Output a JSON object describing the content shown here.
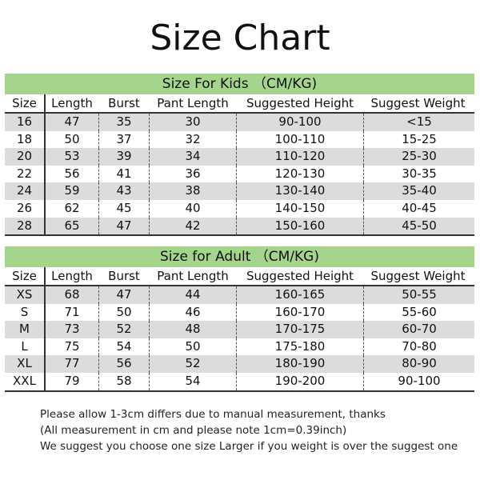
{
  "title": "Size Chart",
  "colors": {
    "band": "#a5d58c",
    "stripe": "#dcdcdc"
  },
  "columns": [
    "Size",
    "Length",
    "Burst",
    "Pant Length",
    "Suggested Height",
    "Suggest Weight"
  ],
  "kids": {
    "heading": "Size For Kids （CM/KG)",
    "rows": [
      [
        "16",
        "47",
        "35",
        "30",
        "90-100",
        "<15"
      ],
      [
        "18",
        "50",
        "37",
        "32",
        "100-110",
        "15-25"
      ],
      [
        "20",
        "53",
        "39",
        "34",
        "110-120",
        "25-30"
      ],
      [
        "22",
        "56",
        "41",
        "36",
        "120-130",
        "30-35"
      ],
      [
        "24",
        "59",
        "43",
        "38",
        "130-140",
        "35-40"
      ],
      [
        "26",
        "62",
        "45",
        "40",
        "140-150",
        "40-45"
      ],
      [
        "28",
        "65",
        "47",
        "42",
        "150-160",
        "45-50"
      ]
    ]
  },
  "adult": {
    "heading": "Size for Adult （CM/KG)",
    "rows": [
      [
        "XS",
        "68",
        "47",
        "44",
        "160-165",
        "50-55"
      ],
      [
        "S",
        "71",
        "50",
        "46",
        "160-170",
        "55-60"
      ],
      [
        "M",
        "73",
        "52",
        "48",
        "170-175",
        "60-70"
      ],
      [
        "L",
        "75",
        "54",
        "50",
        "175-180",
        "70-80"
      ],
      [
        "XL",
        "77",
        "56",
        "52",
        "180-190",
        "80-90"
      ],
      [
        "XXL",
        "79",
        "58",
        "54",
        "190-200",
        "90-100"
      ]
    ]
  },
  "notes": [
    "Please allow 1-3cm differs due to manual measurement, thanks",
    "(All measurement in cm and please note 1cm=0.39inch)",
    "We suggest you choose one size Larger if you weight is over the suggest one"
  ]
}
